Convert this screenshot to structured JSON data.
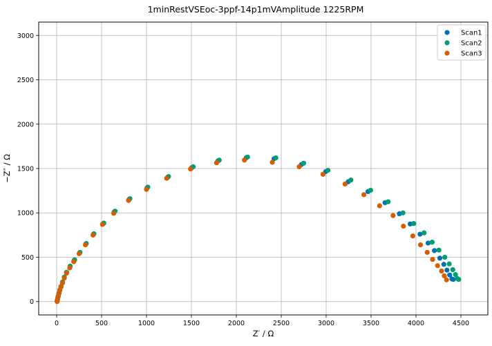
{
  "chart_data": {
    "type": "scatter",
    "title": "1minRestVSEoc-3ppf-14p1mVAmplitude 1225RPM",
    "xlabel": "Z′ / Ω",
    "ylabel": "−Z″ / Ω",
    "xlim": [
      -200,
      4800
    ],
    "ylim": [
      -150,
      3150
    ],
    "xticks": [
      0,
      500,
      1000,
      1500,
      2000,
      2500,
      3000,
      3500,
      4000,
      4500
    ],
    "yticks": [
      0,
      500,
      1000,
      1500,
      2000,
      2500,
      3000
    ],
    "grid": true,
    "legend_position": "top-right",
    "series": [
      {
        "name": "Scan1",
        "color": "#0072b2",
        "x": [
          5,
          8,
          12,
          18,
          25,
          35,
          48,
          65,
          85,
          110,
          150,
          195,
          255,
          325,
          410,
          520,
          640,
          805,
          1005,
          1235,
          1505,
          1795,
          2110,
          2420,
          2725,
          2995,
          3245,
          3465,
          3655,
          3815,
          3935,
          4045,
          4135,
          4205,
          4265,
          4310,
          4345,
          4375,
          4400,
          4415
        ],
        "y": [
          5,
          18,
          40,
          65,
          95,
          130,
          170,
          220,
          275,
          330,
          395,
          465,
          550,
          650,
          760,
          880,
          1010,
          1150,
          1280,
          1400,
          1510,
          1585,
          1620,
          1610,
          1545,
          1465,
          1350,
          1240,
          1115,
          990,
          875,
          760,
          660,
          575,
          490,
          420,
          355,
          300,
          255,
          250
        ]
      },
      {
        "name": "Scan2",
        "color": "#009e73",
        "x": [
          5,
          8,
          12,
          18,
          25,
          35,
          48,
          65,
          85,
          110,
          150,
          200,
          260,
          330,
          415,
          525,
          650,
          815,
          1015,
          1245,
          1520,
          1810,
          2125,
          2440,
          2750,
          3020,
          3275,
          3495,
          3690,
          3855,
          3975,
          4090,
          4180,
          4255,
          4320,
          4370,
          4410,
          4440,
          4460,
          4475
        ],
        "y": [
          5,
          18,
          40,
          65,
          95,
          130,
          170,
          220,
          275,
          330,
          400,
          470,
          555,
          655,
          765,
          885,
          1020,
          1160,
          1290,
          1410,
          1520,
          1595,
          1630,
          1620,
          1560,
          1480,
          1370,
          1255,
          1125,
          1000,
          880,
          775,
          670,
          580,
          500,
          425,
          360,
          305,
          260,
          250
        ]
      },
      {
        "name": "Scan3",
        "color": "#d55e00",
        "x": [
          5,
          8,
          12,
          18,
          25,
          35,
          48,
          65,
          85,
          110,
          145,
          190,
          250,
          320,
          405,
          510,
          635,
          800,
          1000,
          1225,
          1490,
          1780,
          2090,
          2400,
          2700,
          2965,
          3210,
          3420,
          3595,
          3745,
          3860,
          3965,
          4050,
          4125,
          4185,
          4240,
          4285,
          4315,
          4340
        ],
        "y": [
          0,
          15,
          35,
          60,
          90,
          125,
          165,
          210,
          265,
          320,
          380,
          450,
          540,
          640,
          750,
          870,
          995,
          1140,
          1265,
          1390,
          1495,
          1565,
          1595,
          1570,
          1520,
          1435,
          1325,
          1205,
          1080,
          970,
          850,
          740,
          640,
          555,
          475,
          405,
          345,
          290,
          245
        ]
      }
    ]
  }
}
